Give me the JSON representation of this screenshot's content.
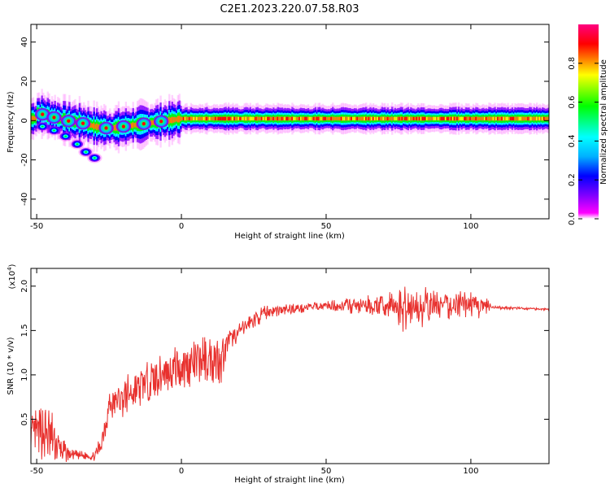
{
  "title": "C2E1.2023.220.07.58.R03",
  "chart_data": [
    {
      "type": "heatmap",
      "xlabel": "Height of straight line (km)",
      "ylabel": "Frequency (Hz)",
      "xlim": [
        -52,
        127
      ],
      "ylim": [
        -50,
        49
      ],
      "xticks": [
        -50,
        0,
        50,
        100
      ],
      "yticks": [
        -40,
        -20,
        0,
        20,
        40
      ],
      "colorbar": {
        "label": "Normalized spectral amplitude",
        "range": [
          0,
          1
        ],
        "ticks": [
          "0.0",
          "0.2",
          "0.4",
          "0.6",
          "0.8"
        ],
        "colormap": [
          "#ff00ff",
          "#8000ff",
          "#0000ff",
          "#00b0ff",
          "#00ffff",
          "#00ff80",
          "#00ff00",
          "#80ff00",
          "#ffff00",
          "#ff8000",
          "#ff0000",
          "#ff0080"
        ]
      },
      "ridge": [
        {
          "x": -50,
          "y": 4
        },
        {
          "x": -45,
          "y": 2
        },
        {
          "x": -40,
          "y": 0
        },
        {
          "x": -35,
          "y": -1
        },
        {
          "x": -30,
          "y": -3
        },
        {
          "x": -25,
          "y": -4
        },
        {
          "x": -20,
          "y": -3
        },
        {
          "x": -15,
          "y": -2
        },
        {
          "x": -10,
          "y": -1
        },
        {
          "x": -5,
          "y": 0
        },
        {
          "x": 0,
          "y": 1
        },
        {
          "x": 10,
          "y": 1
        },
        {
          "x": 30,
          "y": 1
        },
        {
          "x": 50,
          "y": 1
        },
        {
          "x": 80,
          "y": 1
        },
        {
          "x": 100,
          "y": 1
        },
        {
          "x": 127,
          "y": 1
        }
      ],
      "branch": [
        {
          "x": -48,
          "y": -3
        },
        {
          "x": -44,
          "y": -5
        },
        {
          "x": -40,
          "y": -8
        },
        {
          "x": -36,
          "y": -12
        },
        {
          "x": -33,
          "y": -16
        },
        {
          "x": -30,
          "y": -19
        }
      ]
    },
    {
      "type": "line",
      "xlabel": "Height of straight line (km)",
      "ylabel": "SNR (10 * v/v)",
      "yscale_label": "(x10",
      "yscale_exponent": "4",
      "yscale_suffix": ")",
      "xlim": [
        -52,
        127
      ],
      "ylim": [
        0,
        2.2
      ],
      "xticks": [
        -50,
        0,
        50,
        100
      ],
      "yticks": [
        0.5,
        1.0,
        1.5,
        2.0
      ],
      "color": "#e8312e",
      "envelope": [
        {
          "x": -52,
          "y": 0.3,
          "a": 0.25
        },
        {
          "x": -47,
          "y": 0.35,
          "a": 0.4
        },
        {
          "x": -44,
          "y": 0.25,
          "a": 0.35
        },
        {
          "x": -42,
          "y": 0.15,
          "a": 0.18
        },
        {
          "x": -38,
          "y": 0.1,
          "a": 0.06
        },
        {
          "x": -30,
          "y": 0.08,
          "a": 0.05
        },
        {
          "x": -28,
          "y": 0.2,
          "a": 0.15
        },
        {
          "x": -25,
          "y": 0.65,
          "a": 0.2
        },
        {
          "x": -15,
          "y": 0.85,
          "a": 0.25
        },
        {
          "x": -5,
          "y": 1.05,
          "a": 0.25
        },
        {
          "x": 5,
          "y": 1.15,
          "a": 0.3
        },
        {
          "x": 14,
          "y": 1.2,
          "a": 0.3
        },
        {
          "x": 16,
          "y": 1.38,
          "a": 0.12
        },
        {
          "x": 25,
          "y": 1.62,
          "a": 0.1
        },
        {
          "x": 30,
          "y": 1.72,
          "a": 0.08
        },
        {
          "x": 50,
          "y": 1.78,
          "a": 0.05
        },
        {
          "x": 60,
          "y": 1.78,
          "a": 0.1
        },
        {
          "x": 70,
          "y": 1.78,
          "a": 0.15
        },
        {
          "x": 78,
          "y": 1.75,
          "a": 0.3
        },
        {
          "x": 90,
          "y": 1.78,
          "a": 0.18
        },
        {
          "x": 100,
          "y": 1.8,
          "a": 0.15
        },
        {
          "x": 106,
          "y": 1.75,
          "a": 0.15
        },
        {
          "x": 107,
          "y": 1.76,
          "a": 0.02
        },
        {
          "x": 127,
          "y": 1.74,
          "a": 0.015
        }
      ]
    }
  ]
}
